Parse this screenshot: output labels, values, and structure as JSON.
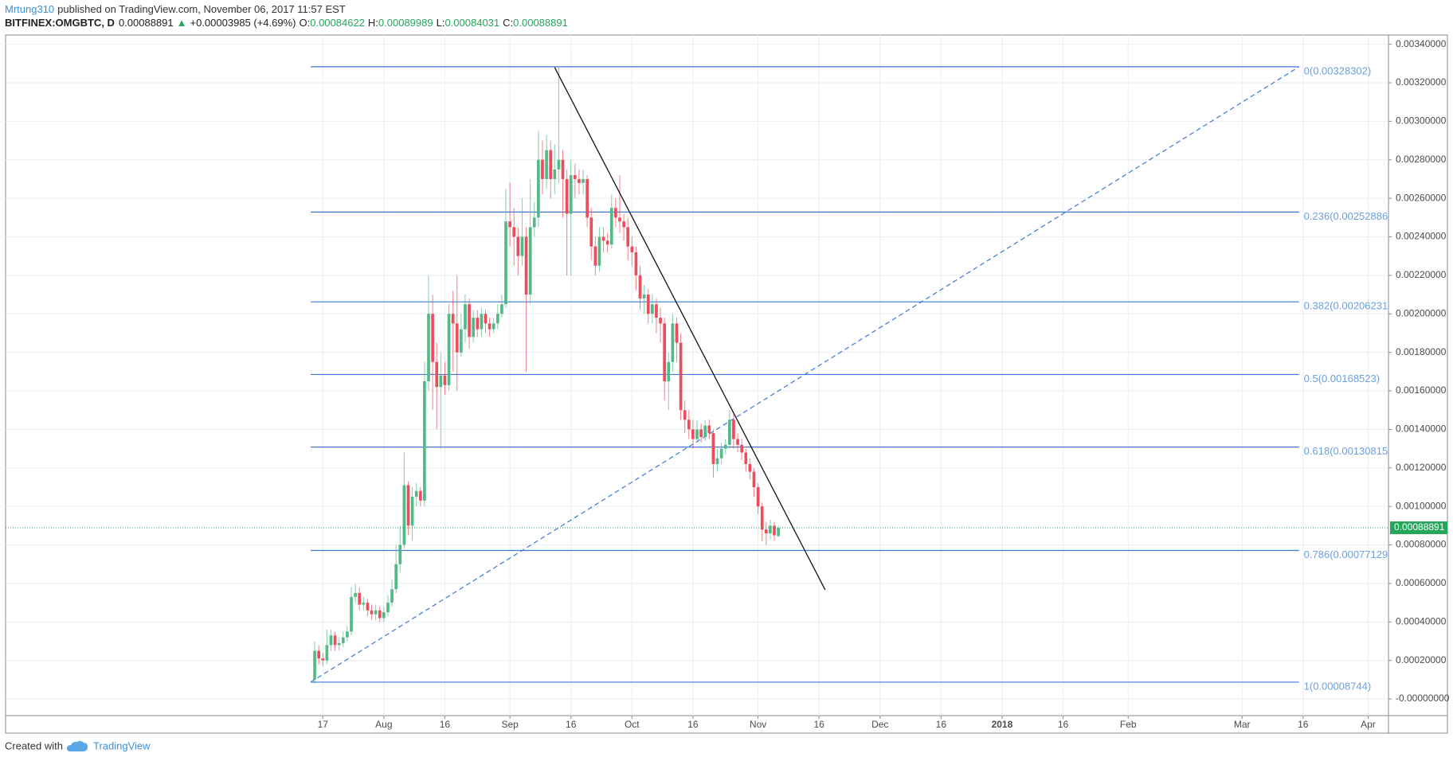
{
  "header": {
    "author": "Mrtung310",
    "published": "published on TradingView.com, November 06, 2017 11:57 EST",
    "symbol": "BITFINEX:OMGBTC, D",
    "arrow": "▲",
    "change": "+0.00003985 (+4.69%)",
    "o": "O:",
    "h": "H:",
    "l": "L:",
    "c": "C:"
  },
  "footer": {
    "created": "Created with",
    "brand": "TradingView"
  },
  "chart_data": {
    "type": "candlestick",
    "up_color": "#53b987",
    "down_color": "#eb4d5c",
    "grid": true,
    "last_price": 0.00088891,
    "last_price_color": "#26a65b",
    "xlim": [
      120,
      460
    ],
    "ylim": [
      -8.65e-05,
      0.003448
    ],
    "xticks": [
      {
        "value": 198,
        "label": "17"
      },
      {
        "value": 213,
        "label": "Aug"
      },
      {
        "value": 228,
        "label": "16"
      },
      {
        "value": 244,
        "label": "Sep"
      },
      {
        "value": 259,
        "label": "16"
      },
      {
        "value": 274,
        "label": "Oct"
      },
      {
        "value": 289,
        "label": "16"
      },
      {
        "value": 305,
        "label": "Nov"
      },
      {
        "value": 320,
        "label": "16"
      },
      {
        "value": 335,
        "label": "Dec"
      },
      {
        "value": 350,
        "label": "16"
      },
      {
        "value": 365,
        "label": "2018"
      },
      {
        "value": 380,
        "label": "16"
      },
      {
        "value": 396,
        "label": "Feb"
      },
      {
        "value": 424,
        "label": "Mar"
      },
      {
        "value": 439,
        "label": "16"
      },
      {
        "value": 455,
        "label": "Apr"
      }
    ],
    "yticks": [
      {
        "value": 0.0034,
        "label": "0.00340000"
      },
      {
        "value": 0.0032,
        "label": "0.00320000"
      },
      {
        "value": 0.003,
        "label": "0.00300000"
      },
      {
        "value": 0.0028,
        "label": "0.00280000"
      },
      {
        "value": 0.0026,
        "label": "0.00260000"
      },
      {
        "value": 0.0024,
        "label": "0.00240000"
      },
      {
        "value": 0.0022,
        "label": "0.00220000"
      },
      {
        "value": 0.002,
        "label": "0.00200000"
      },
      {
        "value": 0.0018,
        "label": "0.00180000"
      },
      {
        "value": 0.0016,
        "label": "0.00160000"
      },
      {
        "value": 0.0014,
        "label": "0.00140000"
      },
      {
        "value": 0.0012,
        "label": "0.00120000"
      },
      {
        "value": 0.001,
        "label": "0.00100000"
      },
      {
        "value": 0.0008,
        "label": "0.00080000"
      },
      {
        "value": 0.0006,
        "label": "0.00060000"
      },
      {
        "value": 0.0004,
        "label": "0.00040000"
      },
      {
        "value": 0.0002,
        "label": "0.00020000"
      },
      {
        "value": 0,
        "label": "-0.00000000"
      }
    ],
    "fib_color": "#3c78d8",
    "fib_x": [
      195,
      438
    ],
    "fib_levels": [
      {
        "label": "0(0.00328302)",
        "value": 0.00328302
      },
      {
        "label": "0.236(0.00252886)",
        "value": 0.00252886
      },
      {
        "label": "0.382(0.00206231)",
        "value": 0.00206231
      },
      {
        "label": "0.5(0.00168523)",
        "value": 0.00168523
      },
      {
        "label": "0.618(0.00130815)",
        "value": 0.00130815
      },
      {
        "label": "0.786(0.00077129)",
        "value": 0.00077129
      },
      {
        "label": "1(0.00008744)",
        "value": 8.744e-05
      }
    ],
    "trend_line": {
      "x": [
        255,
        321.5
      ],
      "y": [
        0.00328,
        0.000567
      ],
      "color": "#111111"
    },
    "x": [
      196,
      197,
      198,
      199,
      200,
      201,
      202,
      203,
      204,
      205,
      206,
      207,
      208,
      209,
      210,
      211,
      212,
      213,
      214,
      215,
      216,
      217,
      218,
      219,
      220,
      221,
      222,
      223,
      224,
      225,
      226,
      227,
      228,
      229,
      230,
      231,
      232,
      233,
      234,
      235,
      236,
      237,
      238,
      239,
      240,
      241,
      242,
      243,
      244,
      245,
      246,
      247,
      248,
      249,
      250,
      251,
      252,
      253,
      254,
      255,
      256,
      257,
      258,
      259,
      260,
      261,
      262,
      263,
      264,
      265,
      266,
      267,
      268,
      269,
      270,
      271,
      272,
      273,
      274,
      275,
      276,
      277,
      278,
      279,
      280,
      281,
      282,
      283,
      284,
      285,
      286,
      287,
      288,
      289,
      290,
      291,
      292,
      293,
      294,
      295,
      296,
      297,
      298,
      299,
      300,
      301,
      302,
      303,
      304,
      305,
      306,
      307,
      308,
      309,
      310
    ],
    "open": [
      0.0001,
      0.00025,
      0.00021,
      0.0002,
      0.00028,
      0.00033,
      0.00028,
      0.00029,
      0.00032,
      0.00035,
      0.00053,
      0.00055,
      0.00049,
      0.0005,
      0.00046,
      0.00044,
      0.00046,
      0.00042,
      0.00045,
      0.0005,
      0.00057,
      0.0007,
      0.0008,
      0.00111,
      0.0009,
      0.00105,
      0.00108,
      0.00103,
      0.00165,
      0.002,
      0.00175,
      0.00162,
      0.00168,
      0.00163,
      0.002,
      0.00195,
      0.0018,
      0.00192,
      0.00205,
      0.00188,
      0.00198,
      0.00192,
      0.002,
      0.00195,
      0.00192,
      0.00195,
      0.002,
      0.00205,
      0.00248,
      0.00245,
      0.0024,
      0.0023,
      0.0024,
      0.0021,
      0.00245,
      0.0025,
      0.0028,
      0.0027,
      0.00285,
      0.0027,
      0.00275,
      0.0028,
      0.0027,
      0.00252,
      0.00272,
      0.0027,
      0.00268,
      0.0027,
      0.0025,
      0.00235,
      0.00225,
      0.0024,
      0.00238,
      0.00236,
      0.00255,
      0.0025,
      0.00248,
      0.00245,
      0.00235,
      0.00232,
      0.0022,
      0.00208,
      0.0021,
      0.002,
      0.00205,
      0.00198,
      0.00195,
      0.00165,
      0.00175,
      0.00195,
      0.00185,
      0.0015,
      0.00145,
      0.0014,
      0.00135,
      0.0014,
      0.00136,
      0.00142,
      0.00138,
      0.00122,
      0.00125,
      0.0013,
      0.00132,
      0.00145,
      0.00135,
      0.00132,
      0.00128,
      0.00122,
      0.00118,
      0.0011,
      0.001,
      0.00088,
      0.00086,
      0.0009,
      0.00084622
    ],
    "high": [
      0.0003,
      0.00028,
      0.00024,
      0.00036,
      0.00036,
      0.00035,
      0.00032,
      0.00035,
      0.00038,
      0.00058,
      0.0006,
      0.00058,
      0.00053,
      0.00052,
      0.00049,
      0.00049,
      0.00048,
      0.00048,
      0.00054,
      0.00062,
      0.0008,
      0.0009,
      0.00128,
      0.00113,
      0.0011,
      0.00112,
      0.0011,
      0.00175,
      0.0022,
      0.0021,
      0.00185,
      0.0018,
      0.00175,
      0.00205,
      0.00212,
      0.0022,
      0.002,
      0.0021,
      0.00208,
      0.00202,
      0.00202,
      0.00203,
      0.00202,
      0.00198,
      0.00198,
      0.00205,
      0.0021,
      0.00265,
      0.00268,
      0.00255,
      0.00245,
      0.0026,
      0.00245,
      0.0027,
      0.00258,
      0.00295,
      0.0029,
      0.00293,
      0.0029,
      0.00288,
      0.00328302,
      0.00285,
      0.00275,
      0.0028,
      0.00278,
      0.00275,
      0.00275,
      0.00272,
      0.00255,
      0.0024,
      0.00245,
      0.00245,
      0.00242,
      0.00262,
      0.0026,
      0.00272,
      0.00252,
      0.0025,
      0.0024,
      0.00235,
      0.00225,
      0.00215,
      0.00213,
      0.0021,
      0.00208,
      0.00203,
      0.00198,
      0.0018,
      0.002,
      0.00198,
      0.0019,
      0.00155,
      0.0015,
      0.00145,
      0.00145,
      0.00143,
      0.00145,
      0.00145,
      0.0014,
      0.0013,
      0.00133,
      0.00135,
      0.0015,
      0.00148,
      0.00138,
      0.00135,
      0.0013,
      0.00125,
      0.0012,
      0.00112,
      0.00102,
      0.00092,
      0.00093,
      0.00092,
      0.00089989
    ],
    "low": [
      8e-05,
      0.00018,
      0.00017,
      0.00018,
      0.00025,
      0.00025,
      0.00025,
      0.00027,
      0.0003,
      0.00033,
      0.0005,
      0.00046,
      0.00046,
      0.00043,
      0.00041,
      0.00041,
      0.0004,
      0.0004,
      0.00043,
      0.00048,
      0.00055,
      0.00066,
      0.00078,
      0.00085,
      0.00082,
      0.001,
      0.001,
      0.001,
      0.0016,
      0.0015,
      0.0014,
      0.0013,
      0.00158,
      0.0016,
      0.0017,
      0.0016,
      0.00178,
      0.00185,
      0.00182,
      0.00185,
      0.00188,
      0.00188,
      0.0019,
      0.00188,
      0.0019,
      0.00192,
      0.00198,
      0.00203,
      0.00235,
      0.00225,
      0.0022,
      0.00225,
      0.0017,
      0.00205,
      0.0024,
      0.00245,
      0.00262,
      0.00265,
      0.0026,
      0.00262,
      0.00268,
      0.0025,
      0.0022,
      0.0022,
      0.0026,
      0.00262,
      0.00262,
      0.00245,
      0.00228,
      0.0022,
      0.00222,
      0.00232,
      0.00232,
      0.00234,
      0.00245,
      0.00242,
      0.00238,
      0.00228,
      0.00225,
      0.00212,
      0.00202,
      0.002,
      0.00195,
      0.00195,
      0.0019,
      0.00185,
      0.00155,
      0.0015,
      0.0017,
      0.00175,
      0.00145,
      0.00138,
      0.00135,
      0.0013,
      0.00133,
      0.00133,
      0.00134,
      0.00135,
      0.00115,
      0.00118,
      0.00122,
      0.00127,
      0.0013,
      0.0013,
      0.00128,
      0.00124,
      0.00118,
      0.00114,
      0.00105,
      0.00096,
      0.00082,
      0.0008,
      0.00083,
      0.00082,
      0.00084031
    ],
    "close": [
      0.00025,
      0.00021,
      0.0002,
      0.00028,
      0.00033,
      0.00028,
      0.00029,
      0.00032,
      0.00035,
      0.00053,
      0.00055,
      0.00049,
      0.0005,
      0.00046,
      0.00044,
      0.00046,
      0.00042,
      0.00045,
      0.0005,
      0.00057,
      0.0007,
      0.0008,
      0.00111,
      0.0009,
      0.00105,
      0.00108,
      0.00103,
      0.00165,
      0.002,
      0.00175,
      0.00162,
      0.00168,
      0.00163,
      0.002,
      0.00195,
      0.0018,
      0.00192,
      0.00205,
      0.00188,
      0.00198,
      0.00192,
      0.002,
      0.00195,
      0.00192,
      0.00195,
      0.002,
      0.00205,
      0.00248,
      0.00245,
      0.0024,
      0.0023,
      0.0024,
      0.0021,
      0.00245,
      0.0025,
      0.0028,
      0.0027,
      0.00285,
      0.0027,
      0.00275,
      0.0028,
      0.0027,
      0.00252,
      0.00272,
      0.0027,
      0.00268,
      0.0027,
      0.0025,
      0.00235,
      0.00225,
      0.0024,
      0.00238,
      0.00236,
      0.00255,
      0.0025,
      0.00248,
      0.00245,
      0.00235,
      0.00232,
      0.0022,
      0.00208,
      0.0021,
      0.002,
      0.00205,
      0.00198,
      0.00195,
      0.00165,
      0.00175,
      0.00195,
      0.00185,
      0.0015,
      0.00145,
      0.0014,
      0.00135,
      0.0014,
      0.00136,
      0.00142,
      0.00138,
      0.00122,
      0.00125,
      0.0013,
      0.00132,
      0.00145,
      0.00135,
      0.00132,
      0.00128,
      0.00122,
      0.00118,
      0.0011,
      0.001,
      0.00088,
      0.00086,
      0.0009,
      0.00085,
      0.00088891
    ]
  }
}
